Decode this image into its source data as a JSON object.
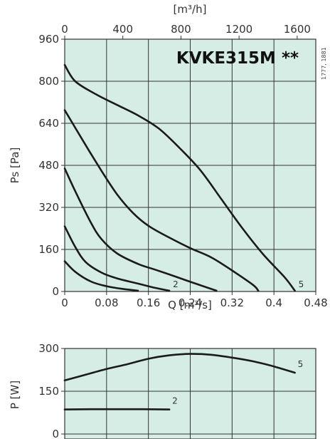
{
  "chart_data": [
    {
      "type": "line",
      "title": "KVKE315M **",
      "side_label": "1777, 1881",
      "xlabel": "Q [m³/s]",
      "x2label": "[m³/h]",
      "ylabel": "Ps [Pa]",
      "xlim": [
        0,
        0.48
      ],
      "x2lim": [
        0,
        1728
      ],
      "ylim": [
        0,
        960
      ],
      "x_ticks": [
        "0",
        "0.08",
        "0.16",
        "0.24",
        "0.32",
        "0.4",
        "0.48"
      ],
      "x_tick_values": [
        0,
        0.08,
        0.16,
        0.24,
        0.32,
        0.4,
        0.48
      ],
      "x2_ticks": [
        "0",
        "400",
        "800",
        "1200",
        "1600"
      ],
      "x2_tick_values": [
        0,
        400,
        800,
        1200,
        1600
      ],
      "y_ticks": [
        "0",
        "160",
        "320",
        "480",
        "640",
        "800",
        "960"
      ],
      "y_tick_values": [
        0,
        160,
        320,
        480,
        640,
        800,
        960
      ],
      "grid": true,
      "series": [
        {
          "name": "",
          "points": [
            [
              0,
              115
            ],
            [
              0.02,
              75
            ],
            [
              0.05,
              38
            ],
            [
              0.08,
              20
            ],
            [
              0.11,
              10
            ],
            [
              0.14,
              3
            ]
          ]
        },
        {
          "name": "2",
          "points": [
            [
              0,
              248
            ],
            [
              0.02,
              170
            ],
            [
              0.04,
              112
            ],
            [
              0.07,
              72
            ],
            [
              0.1,
              50
            ],
            [
              0.14,
              30
            ],
            [
              0.17,
              15
            ],
            [
              0.2,
              3
            ]
          ]
        },
        {
          "name": "",
          "points": [
            [
              0,
              468
            ],
            [
              0.02,
              382
            ],
            [
              0.05,
              262
            ],
            [
              0.07,
              200
            ],
            [
              0.1,
              145
            ],
            [
              0.14,
              105
            ],
            [
              0.17,
              85
            ],
            [
              0.21,
              58
            ],
            [
              0.25,
              30
            ],
            [
              0.29,
              3
            ]
          ]
        },
        {
          "name": "",
          "points": [
            [
              0,
              690
            ],
            [
              0.03,
              590
            ],
            [
              0.07,
              460
            ],
            [
              0.1,
              370
            ],
            [
              0.13,
              300
            ],
            [
              0.16,
              250
            ],
            [
              0.2,
              205
            ],
            [
              0.24,
              165
            ],
            [
              0.28,
              130
            ],
            [
              0.32,
              80
            ],
            [
              0.36,
              25
            ],
            [
              0.37,
              3
            ]
          ]
        },
        {
          "name": "5",
          "points": [
            [
              0,
              862
            ],
            [
              0.02,
              800
            ],
            [
              0.06,
              750
            ],
            [
              0.1,
              710
            ],
            [
              0.14,
              670
            ],
            [
              0.18,
              620
            ],
            [
              0.22,
              545
            ],
            [
              0.26,
              460
            ],
            [
              0.3,
              350
            ],
            [
              0.34,
              240
            ],
            [
              0.38,
              140
            ],
            [
              0.42,
              55
            ],
            [
              0.44,
              3
            ]
          ]
        }
      ]
    },
    {
      "type": "line",
      "ylabel": "P [W]",
      "xlim": [
        0,
        0.48
      ],
      "ylim": [
        0,
        300
      ],
      "y_ticks": [
        "0",
        "150",
        "300"
      ],
      "y_tick_values": [
        0,
        150,
        300
      ],
      "grid": true,
      "series": [
        {
          "name": "5",
          "points": [
            [
              0,
              188
            ],
            [
              0.04,
              208
            ],
            [
              0.08,
              228
            ],
            [
              0.12,
              245
            ],
            [
              0.16,
              264
            ],
            [
              0.2,
              276
            ],
            [
              0.24,
              281
            ],
            [
              0.28,
              278
            ],
            [
              0.32,
              268
            ],
            [
              0.36,
              255
            ],
            [
              0.4,
              237
            ],
            [
              0.44,
              215
            ]
          ]
        },
        {
          "name": "2",
          "points": [
            [
              0,
              86
            ],
            [
              0.05,
              87
            ],
            [
              0.1,
              87
            ],
            [
              0.15,
              87
            ],
            [
              0.2,
              86
            ]
          ]
        }
      ]
    }
  ]
}
